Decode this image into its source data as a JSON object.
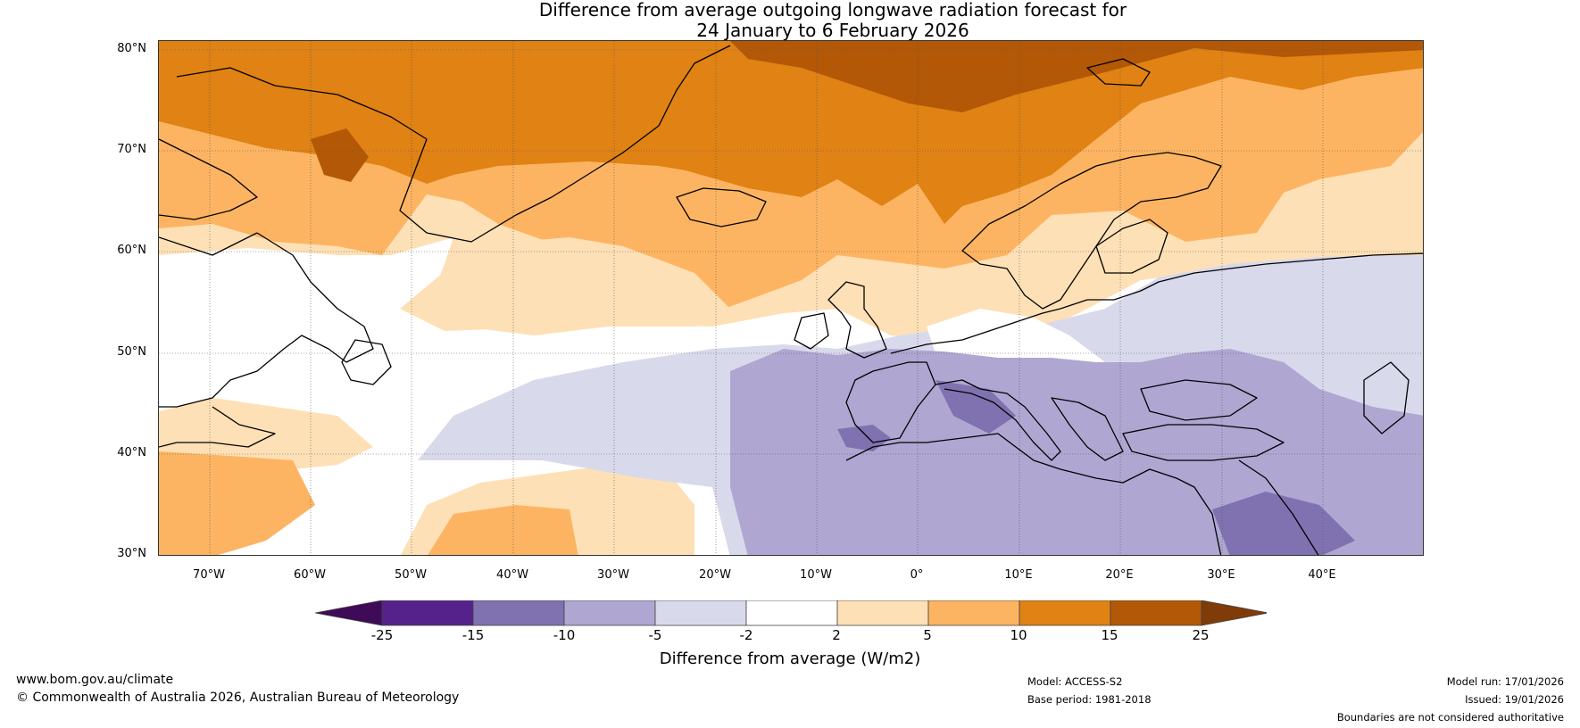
{
  "title": {
    "line1": "Difference from average outgoing longwave radiation forecast for",
    "line2": "24 January to 6 February 2026"
  },
  "map": {
    "lat_labels": [
      "80°N",
      "70°N",
      "60°N",
      "50°N",
      "40°N",
      "30°N"
    ],
    "lon_labels": [
      "70°W",
      "60°W",
      "50°W",
      "40°W",
      "30°W",
      "20°W",
      "10°W",
      "0°",
      "10°E",
      "20°E",
      "30°E",
      "40°E"
    ],
    "extent": {
      "lon_min": -75,
      "lon_max": 50,
      "lat_min": 30,
      "lat_max": 81
    }
  },
  "colorbar": {
    "ticks": [
      "-25",
      "-15",
      "-10",
      "-5",
      "-2",
      "2",
      "5",
      "10",
      "15",
      "25"
    ],
    "colors": [
      "#3f0a57",
      "#55218a",
      "#8072b0",
      "#afa7d2",
      "#d9d9ec",
      "#ffffff",
      "#fee0b6",
      "#fdb462",
      "#e08214",
      "#b35806",
      "#7f3b08"
    ],
    "label": "Difference from average (W/m2)"
  },
  "footer": {
    "url": "www.bom.gov.au/climate",
    "copyright": "© Commonwealth of Australia 2026, Australian Bureau of Meteorology",
    "model": "Model: ACCESS-S2",
    "base_period": "Base period: 1981-2018",
    "model_run": "Model run: 17/01/2026",
    "issued": "Issued: 19/01/2026",
    "disclaimer": "Boundaries are not considered authoritative"
  }
}
